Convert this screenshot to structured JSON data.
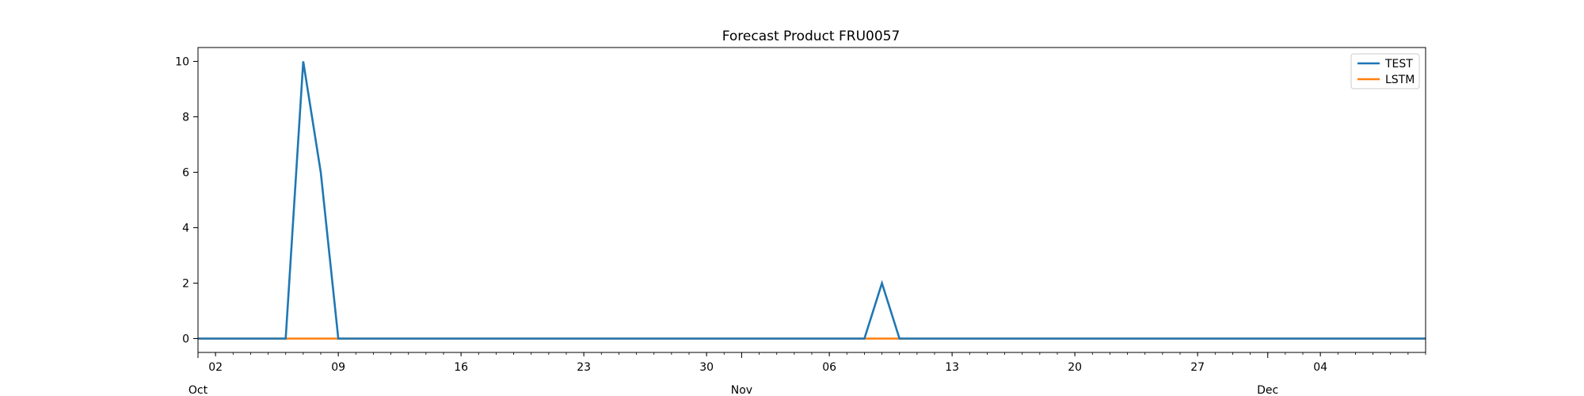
{
  "chart_data": {
    "type": "line",
    "title": "Forecast Product FRU0057",
    "xlabel": "",
    "ylabel": "",
    "xlim": [
      "2023-10-01",
      "2023-12-10"
    ],
    "ylim": [
      -0.5,
      10.5
    ],
    "y_ticks": [
      0,
      2,
      4,
      6,
      8,
      10
    ],
    "x_minor_ticks": [
      {
        "date": "2023-10-02",
        "label": "02"
      },
      {
        "date": "2023-10-09",
        "label": "09"
      },
      {
        "date": "2023-10-16",
        "label": "16"
      },
      {
        "date": "2023-10-23",
        "label": "23"
      },
      {
        "date": "2023-10-30",
        "label": "30"
      },
      {
        "date": "2023-11-06",
        "label": "06"
      },
      {
        "date": "2023-11-13",
        "label": "13"
      },
      {
        "date": "2023-11-20",
        "label": "20"
      },
      {
        "date": "2023-11-27",
        "label": "27"
      },
      {
        "date": "2023-12-04",
        "label": "04"
      }
    ],
    "x_major_ticks": [
      {
        "date": "2023-10-01",
        "label": "Oct"
      },
      {
        "date": "2023-11-01",
        "label": "Nov"
      },
      {
        "date": "2023-12-01",
        "label": "Dec"
      }
    ],
    "grid": false,
    "legend_position": "top-right",
    "series": [
      {
        "name": "TEST",
        "color": "#1f77b4",
        "points": [
          {
            "x": "2023-10-01",
            "y": 0
          },
          {
            "x": "2023-10-06",
            "y": 0
          },
          {
            "x": "2023-10-07",
            "y": 10
          },
          {
            "x": "2023-10-08",
            "y": 6
          },
          {
            "x": "2023-10-09",
            "y": 0
          },
          {
            "x": "2023-11-08",
            "y": 0
          },
          {
            "x": "2023-11-09",
            "y": 2
          },
          {
            "x": "2023-11-10",
            "y": 0
          },
          {
            "x": "2023-12-10",
            "y": 0
          }
        ]
      },
      {
        "name": "LSTM",
        "color": "#ff7f0e",
        "points": [
          {
            "x": "2023-10-01",
            "y": 0
          },
          {
            "x": "2023-12-10",
            "y": 0
          }
        ]
      }
    ]
  }
}
